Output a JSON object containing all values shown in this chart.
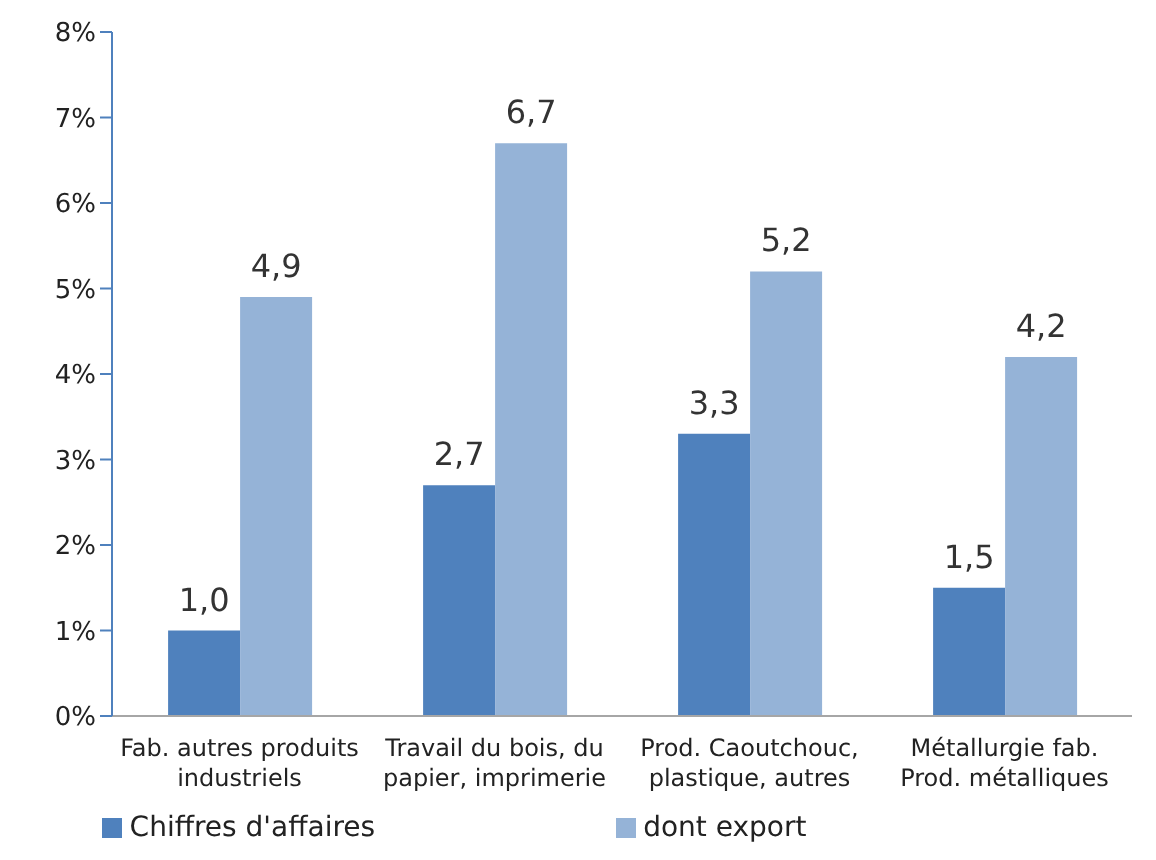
{
  "chart_data": {
    "type": "bar",
    "categories": [
      "Fab. autres produits industriels",
      "Travail du bois, du papier, imprimerie",
      "Prod. Caoutchouc, plastique, autres",
      "Métallurgie fab. Prod. métalliques"
    ],
    "series": [
      {
        "name": "Chiffres d'affaires",
        "color": "#4f81bd",
        "values": [
          1.0,
          2.7,
          3.3,
          1.5
        ],
        "value_labels": [
          "1,0",
          "2,7",
          "3,3",
          "1,5"
        ]
      },
      {
        "name": "dont export",
        "color": "#95b3d7",
        "values": [
          4.9,
          6.7,
          5.2,
          4.2
        ],
        "value_labels": [
          "4,9",
          "6,7",
          "5,2",
          "4,2"
        ]
      }
    ],
    "ylim": [
      0,
      8
    ],
    "yticks": [
      {
        "value": 0,
        "label": "0%"
      },
      {
        "value": 1,
        "label": "1%"
      },
      {
        "value": 2,
        "label": "2%"
      },
      {
        "value": 3,
        "label": "3%"
      },
      {
        "value": 4,
        "label": "4%"
      },
      {
        "value": 5,
        "label": "5%"
      },
      {
        "value": 6,
        "label": "6%"
      },
      {
        "value": 7,
        "label": "7%"
      },
      {
        "value": 8,
        "label": "8%"
      }
    ],
    "grid": false,
    "legend": "bottom"
  }
}
